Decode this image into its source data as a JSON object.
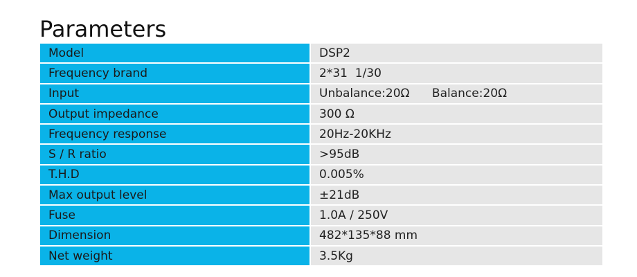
{
  "title": "Parameters",
  "table": {
    "rows": [
      [
        "Model",
        "DSP2"
      ],
      [
        "Frequency brand",
        "2*31  1/30"
      ],
      [
        "Input",
        "Unbalance:20Ω      Balance:20Ω"
      ],
      [
        "Output impedance",
        "300 Ω"
      ],
      [
        "Frequency response",
        "20Hz-20KHz"
      ],
      [
        "S / R ratio",
        ">95dB"
      ],
      [
        "T.H.D",
        "0.005%"
      ],
      [
        "Max output level",
        "±21dB"
      ],
      [
        "Fuse",
        "1.0A / 250V"
      ],
      [
        "Dimension",
        "482*135*88 mm"
      ],
      [
        "Net weight",
        "3.5Kg"
      ]
    ]
  }
}
